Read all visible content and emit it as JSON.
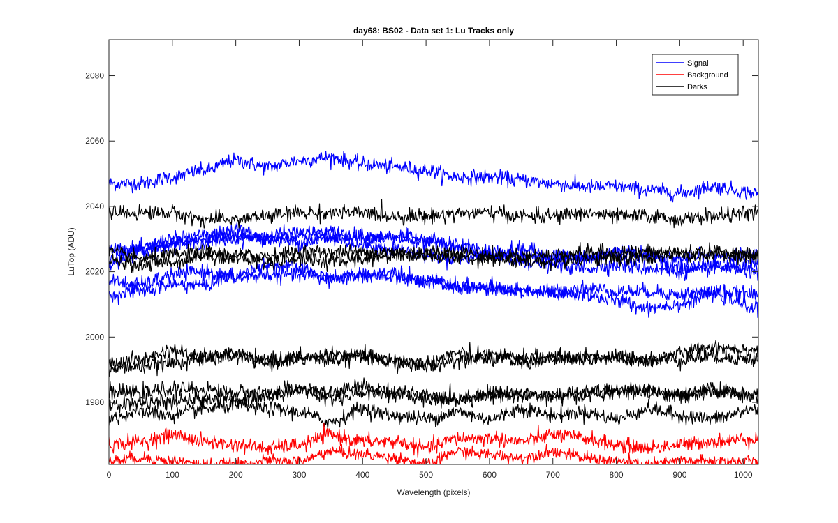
{
  "chart_data": {
    "type": "line",
    "title": "day68: BS02 - Data set 1: Lu Tracks only",
    "xlabel": "Wavelength (pixels)",
    "ylabel": "LuTop (ADU)",
    "xlim": [
      0,
      1024
    ],
    "ylim": [
      1961,
      2091
    ],
    "xticks": [
      0,
      100,
      200,
      300,
      400,
      500,
      600,
      700,
      800,
      900,
      1000
    ],
    "yticks": [
      1980,
      2000,
      2020,
      2040,
      2060,
      2080
    ],
    "grid": false,
    "legend": {
      "placement": "top-right",
      "entries": [
        {
          "label": "Signal",
          "color": "#0000ff"
        },
        {
          "label": "Background",
          "color": "#ff0000"
        },
        {
          "label": "Darks",
          "color": "#000000"
        }
      ]
    },
    "x": [
      0,
      50,
      100,
      150,
      200,
      250,
      300,
      350,
      400,
      450,
      500,
      550,
      600,
      650,
      700,
      750,
      800,
      850,
      900,
      950,
      1024
    ],
    "series": [
      {
        "group": "Signal",
        "color": "#0000ff",
        "noise": 1.1,
        "values": [
          2047,
          2047,
          2049,
          2051,
          2054,
          2052,
          2054,
          2055,
          2053,
          2052,
          2051,
          2049,
          2049,
          2048,
          2047,
          2046,
          2046,
          2045,
          2044,
          2046,
          2044
        ]
      },
      {
        "group": "Signal",
        "color": "#0000ff",
        "noise": 1.1,
        "values": [
          2027,
          2027,
          2030,
          2031,
          2031,
          2030,
          2031,
          2032,
          2031,
          2030,
          2029,
          2028,
          2026,
          2025,
          2024,
          2024,
          2026,
          2025,
          2024,
          2025,
          2025
        ]
      },
      {
        "group": "Signal",
        "color": "#0000ff",
        "noise": 1.1,
        "values": [
          2024,
          2027,
          2029,
          2029,
          2030,
          2031,
          2032,
          2031,
          2030,
          2031,
          2030,
          2027,
          2025,
          2023,
          2022,
          2021,
          2022,
          2021,
          2020,
          2021,
          2022
        ]
      },
      {
        "group": "Signal",
        "color": "#0000ff",
        "noise": 1.1,
        "values": [
          2022,
          2026,
          2028,
          2030,
          2033,
          2030,
          2029,
          2030,
          2028,
          2027,
          2025,
          2024,
          2025,
          2027,
          2025,
          2024,
          2026,
          2025,
          2021,
          2022,
          2020
        ]
      },
      {
        "group": "Signal",
        "color": "#0000ff",
        "noise": 1.1,
        "values": [
          2017,
          2016,
          2019,
          2020,
          2018,
          2019,
          2019,
          2018,
          2019,
          2018,
          2017,
          2016,
          2015,
          2014,
          2014,
          2015,
          2014,
          2014,
          2013,
          2014,
          2013
        ]
      },
      {
        "group": "Signal",
        "color": "#0000ff",
        "noise": 1.1,
        "values": [
          2013,
          2014,
          2016,
          2016,
          2019,
          2022,
          2021,
          2018,
          2019,
          2020,
          2017,
          2015,
          2015,
          2014,
          2013,
          2013,
          2011,
          2009,
          2010,
          2013,
          2009
        ]
      },
      {
        "group": "Darks",
        "color": "#000000",
        "noise": 1.1,
        "values": [
          2038,
          2038,
          2038,
          2036,
          2036,
          2037,
          2038,
          2038,
          2038,
          2037,
          2037,
          2038,
          2038,
          2037,
          2037,
          2038,
          2037,
          2037,
          2036,
          2037,
          2038
        ]
      },
      {
        "group": "Darks",
        "color": "#000000",
        "noise": 1.1,
        "values": [
          2023,
          2022,
          2023,
          2025,
          2024,
          2023,
          2024,
          2023,
          2024,
          2025,
          2025,
          2024,
          2024,
          2023,
          2023,
          2024,
          2024,
          2024,
          2025,
          2025,
          2025
        ]
      },
      {
        "group": "Darks",
        "color": "#000000",
        "noise": 1.1,
        "values": [
          2026,
          2024,
          2025,
          2026,
          2025,
          2025,
          2026,
          2026,
          2026,
          2026,
          2026,
          2026,
          2025,
          2025,
          2025,
          2026,
          2026,
          2026,
          2026,
          2026,
          2025
        ]
      },
      {
        "group": "Darks",
        "color": "#000000",
        "noise": 1.1,
        "values": [
          1992,
          1993,
          1996,
          1993,
          1994,
          1992,
          1994,
          1993,
          1994,
          1993,
          1992,
          1995,
          1993,
          1994,
          1994,
          1993,
          1994,
          1993,
          1993,
          1994,
          1993
        ]
      },
      {
        "group": "Darks",
        "color": "#000000",
        "noise": 1.1,
        "values": [
          1990,
          1991,
          1992,
          1994,
          1995,
          1993,
          1993,
          1995,
          1994,
          1992,
          1991,
          1993,
          1995,
          1992,
          1993,
          1994,
          1993,
          1993,
          1995,
          1997,
          1996
        ]
      },
      {
        "group": "Darks",
        "color": "#000000",
        "noise": 1.1,
        "values": [
          1983,
          1983,
          1984,
          1984,
          1983,
          1983,
          1984,
          1983,
          1985,
          1983,
          1982,
          1981,
          1982,
          1983,
          1982,
          1982,
          1983,
          1984,
          1982,
          1984,
          1982
        ]
      },
      {
        "group": "Darks",
        "color": "#000000",
        "noise": 1.1,
        "values": [
          1979,
          1980,
          1980,
          1981,
          1981,
          1982,
          1984,
          1981,
          1983,
          1983,
          1981,
          1981,
          1983,
          1982,
          1982,
          1983,
          1984,
          1983,
          1982,
          1983,
          1982
        ]
      },
      {
        "group": "Darks",
        "color": "#000000",
        "noise": 1.1,
        "values": [
          1975,
          1977,
          1976,
          1978,
          1979,
          1978,
          1977,
          1974,
          1978,
          1976,
          1975,
          1977,
          1975,
          1978,
          1976,
          1977,
          1975,
          1978,
          1976,
          1975,
          1978
        ]
      },
      {
        "group": "Background",
        "color": "#ff0000",
        "noise": 1.1,
        "values": [
          1967,
          1968,
          1970,
          1968,
          1967,
          1966,
          1967,
          1970,
          1968,
          1968,
          1966,
          1969,
          1969,
          1968,
          1970,
          1969,
          1967,
          1966,
          1967,
          1968,
          1969
        ]
      },
      {
        "group": "Background",
        "color": "#ff0000",
        "noise": 0.9,
        "values": [
          1962,
          1963,
          1962,
          1961,
          1961,
          1962,
          1962,
          1965,
          1964,
          1963,
          1961,
          1965,
          1964,
          1963,
          1965,
          1963,
          1962,
          1961,
          1962,
          1962,
          1962
        ]
      }
    ]
  }
}
